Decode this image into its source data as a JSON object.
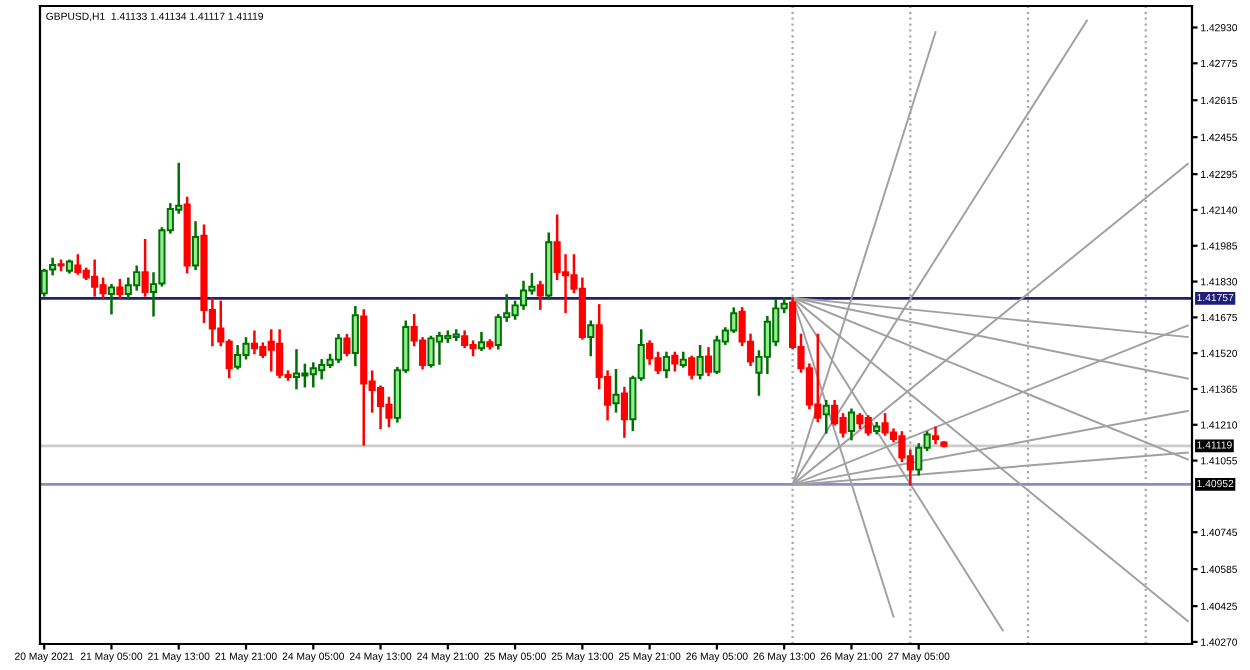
{
  "chart_data": {
    "type": "candlestick",
    "title": "GBPUSD,H1  1.41133 1.41134 1.41117 1.41119",
    "categories": [
      "20 May 2021",
      null,
      null,
      null,
      null,
      null,
      null,
      null,
      "21 May 05:00",
      null,
      null,
      null,
      null,
      null,
      null,
      null,
      "21 May 13:00",
      null,
      null,
      null,
      null,
      null,
      null,
      null,
      "21 May 21:00",
      null,
      null,
      null,
      null,
      null,
      null,
      null,
      "24 May 05:00",
      null,
      null,
      null,
      null,
      null,
      null,
      null,
      "24 May 13:00",
      null,
      null,
      null,
      null,
      null,
      null,
      null,
      "24 May 21:00",
      null,
      null,
      null,
      null,
      null,
      null,
      null,
      "25 May 05:00",
      null,
      null,
      null,
      null,
      null,
      null,
      null,
      "25 May 13:00",
      null,
      null,
      null,
      null,
      null,
      null,
      null,
      "25 May 21:00",
      null,
      null,
      null,
      null,
      null,
      null,
      null,
      "26 May 05:00",
      null,
      null,
      null,
      null,
      null,
      null,
      null,
      "26 May 13:00",
      null,
      null,
      null,
      null,
      null,
      null,
      null,
      "26 May 21:00",
      null,
      null,
      null,
      null,
      null,
      null,
      null,
      "27 May 05:00",
      null,
      null,
      null,
      null,
      null,
      null,
      null,
      null,
      null,
      null,
      null,
      null,
      null,
      null,
      null,
      null,
      null,
      null,
      null,
      null,
      null,
      null,
      null,
      null,
      null,
      null,
      null,
      null,
      null,
      null,
      null,
      null
    ],
    "ohlc": [
      [
        1.41779,
        1.4188,
        1.4177,
        1.41877
      ],
      [
        1.41882,
        1.41928,
        1.41862,
        1.41902
      ],
      [
        1.41905,
        1.4192,
        1.4188,
        1.419
      ],
      [
        1.41877,
        1.4192,
        1.4187,
        1.41917
      ],
      [
        1.419,
        1.41943,
        1.41865,
        1.41871
      ],
      [
        1.41877,
        1.41885,
        1.41842,
        1.41848
      ],
      [
        1.41851,
        1.4192,
        1.4177,
        1.41808
      ],
      [
        1.41814,
        1.41842,
        1.41762,
        1.41779
      ],
      [
        1.41776,
        1.41814,
        1.41693,
        1.41805
      ],
      [
        1.41805,
        1.41836,
        1.41762,
        1.41776
      ],
      [
        1.41776,
        1.41842,
        1.41756,
        1.41814
      ],
      [
        1.41814,
        1.41894,
        1.41796,
        1.41871
      ],
      [
        1.41871,
        1.42009,
        1.4177,
        1.41785
      ],
      [
        1.41785,
        1.41865,
        1.41684,
        1.41819
      ],
      [
        1.41822,
        1.4206,
        1.41814,
        1.42052
      ],
      [
        1.42052,
        1.42164,
        1.42043,
        1.42144
      ],
      [
        1.42141,
        1.42339,
        1.42129,
        1.42158
      ],
      [
        1.42164,
        1.42192,
        1.41871,
        1.419
      ],
      [
        1.419,
        1.42086,
        1.41885,
        1.42023
      ],
      [
        1.42029,
        1.42072,
        1.41656,
        1.41707
      ],
      [
        1.41707,
        1.41756,
        1.41555,
        1.41627
      ],
      [
        1.41627,
        1.41742,
        1.41555,
        1.4157
      ],
      [
        1.4157,
        1.41575,
        1.41417,
        1.41455
      ],
      [
        1.41461,
        1.4155,
        1.41455,
        1.41512
      ],
      [
        1.41512,
        1.41584,
        1.41498,
        1.41561
      ],
      [
        1.41561,
        1.41613,
        1.41521,
        1.41541
      ],
      [
        1.41547,
        1.41561,
        1.41504,
        1.41512
      ],
      [
        1.4157,
        1.41618,
        1.41446,
        1.41535
      ],
      [
        1.41561,
        1.41618,
        1.41417,
        1.41426
      ],
      [
        1.41426,
        1.4144,
        1.41406,
        1.41417
      ],
      [
        1.41417,
        1.41532,
        1.41369,
        1.41432
      ],
      [
        1.41423,
        1.41469,
        1.41377,
        1.41432
      ],
      [
        1.41429,
        1.41475,
        1.41377,
        1.41455
      ],
      [
        1.41446,
        1.41489,
        1.41412,
        1.41469
      ],
      [
        1.41469,
        1.41512,
        1.41461,
        1.41492
      ],
      [
        1.41492,
        1.41598,
        1.41483,
        1.41584
      ],
      [
        1.41584,
        1.41598,
        1.41512,
        1.41521
      ],
      [
        1.41521,
        1.41719,
        1.41469,
        1.41684
      ],
      [
        1.41679,
        1.41705,
        1.41125,
        1.41389
      ],
      [
        1.41397,
        1.4144,
        1.41268,
        1.4136
      ],
      [
        1.41369,
        1.41375,
        1.41196,
        1.41291
      ],
      [
        1.41297,
        1.41326,
        1.41205,
        1.4124
      ],
      [
        1.4124,
        1.41455,
        1.41225,
        1.41446
      ],
      [
        1.41446,
        1.41656,
        1.4144,
        1.41633
      ],
      [
        1.41633,
        1.41684,
        1.41555,
        1.41575
      ],
      [
        1.41575,
        1.41584,
        1.41455,
        1.41469
      ],
      [
        1.41469,
        1.4159,
        1.41463,
        1.41584
      ],
      [
        1.4157,
        1.41607,
        1.41475,
        1.41595
      ],
      [
        1.41584,
        1.41613,
        1.4157,
        1.41595
      ],
      [
        1.4159,
        1.41618,
        1.41578,
        1.41601
      ],
      [
        1.41593,
        1.41613,
        1.41547,
        1.41555
      ],
      [
        1.41555,
        1.4157,
        1.41512,
        1.41541
      ],
      [
        1.41541,
        1.41607,
        1.41535,
        1.41567
      ],
      [
        1.41567,
        1.41575,
        1.41541,
        1.4155
      ],
      [
        1.41555,
        1.41684,
        1.41541,
        1.41676
      ],
      [
        1.41676,
        1.4177,
        1.41661,
        1.41693
      ],
      [
        1.41684,
        1.41742,
        1.4167,
        1.41727
      ],
      [
        1.41727,
        1.41828,
        1.41713,
        1.41791
      ],
      [
        1.41791,
        1.41862,
        1.41779,
        1.41808
      ],
      [
        1.41814,
        1.41828,
        1.41713,
        1.4177
      ],
      [
        1.4177,
        1.42037,
        1.41756,
        1.42
      ],
      [
        1.42,
        1.42115,
        1.41842,
        1.41871
      ],
      [
        1.41871,
        1.41943,
        1.41699,
        1.41857
      ],
      [
        1.41857,
        1.41943,
        1.41785,
        1.41799
      ],
      [
        1.41799,
        1.41842,
        1.41584,
        1.4159
      ],
      [
        1.4159,
        1.41656,
        1.41512,
        1.41641
      ],
      [
        1.41641,
        1.41727,
        1.41369,
        1.41417
      ],
      [
        1.41417,
        1.4144,
        1.41234,
        1.41297
      ],
      [
        1.41303,
        1.41446,
        1.41268,
        1.4134
      ],
      [
        1.41346,
        1.41369,
        1.41159,
        1.41234
      ],
      [
        1.41234,
        1.41417,
        1.41188,
        1.41412
      ],
      [
        1.41412,
        1.41618,
        1.41406,
        1.41555
      ],
      [
        1.41561,
        1.4157,
        1.41475,
        1.41498
      ],
      [
        1.41498,
        1.41521,
        1.41435,
        1.41446
      ],
      [
        1.41446,
        1.41521,
        1.41417,
        1.41504
      ],
      [
        1.41509,
        1.41521,
        1.41446,
        1.41475
      ],
      [
        1.41469,
        1.41521,
        1.41463,
        1.41492
      ],
      [
        1.41498,
        1.41504,
        1.41412,
        1.41426
      ],
      [
        1.41426,
        1.4155,
        1.41412,
        1.41504
      ],
      [
        1.41506,
        1.41541,
        1.41426,
        1.4144
      ],
      [
        1.4144,
        1.4159,
        1.41435,
        1.41575
      ],
      [
        1.4157,
        1.41627,
        1.41561,
        1.41618
      ],
      [
        1.41618,
        1.41713,
        1.41613,
        1.41693
      ],
      [
        1.41699,
        1.41714,
        1.41556,
        1.4157
      ],
      [
        1.4157,
        1.41599,
        1.4147,
        1.41484
      ],
      [
        1.41435,
        1.41527,
        1.41341,
        1.41504
      ],
      [
        1.41504,
        1.41676,
        1.41435,
        1.41656
      ],
      [
        1.4157,
        1.41751,
        1.41556,
        1.41714
      ],
      [
        1.41714,
        1.41757,
        1.41699,
        1.41734
      ],
      [
        1.4174,
        1.41757,
        1.41542,
        1.41547
      ],
      [
        1.41547,
        1.41599,
        1.41441,
        1.41455
      ],
      [
        1.41455,
        1.4147,
        1.41283,
        1.41298
      ],
      [
        1.41298,
        1.41599,
        1.41226,
        1.4124
      ],
      [
        1.41255,
        1.41312,
        1.41177,
        1.41292
      ],
      [
        1.41292,
        1.41312,
        1.41212,
        1.41217
      ],
      [
        1.4124,
        1.41255,
        1.4116,
        1.41177
      ],
      [
        1.41183,
        1.41275,
        1.41148,
        1.41263
      ],
      [
        1.41249,
        1.41255,
        1.41197,
        1.41217
      ],
      [
        1.4124,
        1.41246,
        1.41168,
        1.41177
      ],
      [
        1.41183,
        1.41217,
        1.41174,
        1.41203
      ],
      [
        1.41217,
        1.41255,
        1.41168,
        1.41177
      ],
      [
        1.41177,
        1.41189,
        1.4114,
        1.41148
      ],
      [
        1.4116,
        1.41177,
        1.41054,
        1.41068
      ],
      [
        1.41074,
        1.41097,
        1.40952,
        1.41016
      ],
      [
        1.41016,
        1.41125,
        1.40996,
        1.41111
      ],
      [
        1.41111,
        1.41177,
        1.41102,
        1.41168
      ],
      [
        1.4116,
        1.41197,
        1.41131,
        1.41148
      ],
      [
        1.41133,
        1.41134,
        1.41117,
        1.41119
      ],
      null,
      null,
      null,
      null,
      null,
      null,
      null,
      null,
      null,
      null,
      null,
      null,
      null,
      null,
      null,
      null,
      null,
      null,
      null,
      null,
      null,
      null,
      null,
      null,
      null,
      null,
      null,
      null,
      null
    ],
    "series": [
      {
        "type": "line",
        "color": "#a0a0a0",
        "values": [
          null,
          null,
          null,
          null,
          null,
          null,
          null,
          null,
          null,
          null,
          null,
          null,
          null,
          null,
          null,
          null,
          null,
          null,
          null,
          null,
          null,
          null,
          null,
          null,
          null,
          null,
          null,
          null,
          null,
          null,
          null,
          null,
          null,
          null,
          null,
          null,
          null,
          null,
          null,
          null,
          null,
          null,
          null,
          null,
          null,
          null,
          null,
          null,
          null,
          null,
          null,
          null,
          null,
          null,
          null,
          null,
          null,
          null,
          null,
          null,
          null,
          null,
          null,
          null,
          null,
          null,
          null,
          null,
          null,
          null,
          null,
          null,
          null,
          null,
          null,
          null,
          null,
          null,
          null,
          null,
          null,
          null,
          null,
          null,
          null,
          null,
          null,
          null,
          null,
          1.4176,
          null,
          null,
          null,
          null,
          null,
          null,
          null,
          null,
          null,
          null,
          null,
          null,
          null,
          null,
          null,
          null,
          null,
          null,
          null,
          null,
          null,
          null,
          null,
          null,
          null,
          null,
          null,
          null,
          null,
          null,
          null,
          null,
          null,
          null,
          null,
          null,
          null,
          null,
          null,
          null,
          null,
          null,
          null,
          null,
          null,
          null,
          1.4159
        ]
      },
      {
        "type": "line",
        "color": "#a0a0a0",
        "values": [
          null,
          null,
          null,
          null,
          null,
          null,
          null,
          null,
          null,
          null,
          null,
          null,
          null,
          null,
          null,
          null,
          null,
          null,
          null,
          null,
          null,
          null,
          null,
          null,
          null,
          null,
          null,
          null,
          null,
          null,
          null,
          null,
          null,
          null,
          null,
          null,
          null,
          null,
          null,
          null,
          null,
          null,
          null,
          null,
          null,
          null,
          null,
          null,
          null,
          null,
          null,
          null,
          null,
          null,
          null,
          null,
          null,
          null,
          null,
          null,
          null,
          null,
          null,
          null,
          null,
          null,
          null,
          null,
          null,
          null,
          null,
          null,
          null,
          null,
          null,
          null,
          null,
          null,
          null,
          null,
          null,
          null,
          null,
          null,
          null,
          null,
          null,
          null,
          null,
          1.4176,
          null,
          null,
          null,
          null,
          null,
          null,
          null,
          null,
          null,
          null,
          null,
          null,
          null,
          null,
          null,
          null,
          null,
          null,
          null,
          null,
          null,
          null,
          null,
          null,
          null,
          null,
          null,
          null,
          null,
          null,
          null,
          null,
          null,
          null,
          null,
          null,
          null,
          null,
          null,
          null,
          null,
          null,
          null,
          null,
          null,
          null,
          1.4141
        ]
      },
      {
        "type": "line",
        "color": "#a0a0a0",
        "values": [
          null,
          null,
          null,
          null,
          null,
          null,
          null,
          null,
          null,
          null,
          null,
          null,
          null,
          null,
          null,
          null,
          null,
          null,
          null,
          null,
          null,
          null,
          null,
          null,
          null,
          null,
          null,
          null,
          null,
          null,
          null,
          null,
          null,
          null,
          null,
          null,
          null,
          null,
          null,
          null,
          null,
          null,
          null,
          null,
          null,
          null,
          null,
          null,
          null,
          null,
          null,
          null,
          null,
          null,
          null,
          null,
          null,
          null,
          null,
          null,
          null,
          null,
          null,
          null,
          null,
          null,
          null,
          null,
          null,
          null,
          null,
          null,
          null,
          null,
          null,
          null,
          null,
          null,
          null,
          null,
          null,
          null,
          null,
          null,
          null,
          null,
          null,
          null,
          null,
          1.4176,
          null,
          null,
          null,
          null,
          null,
          null,
          null,
          null,
          null,
          null,
          null,
          null,
          null,
          null,
          null,
          null,
          null,
          null,
          null,
          null,
          null,
          null,
          null,
          null,
          null,
          null,
          null,
          null,
          null,
          null,
          null,
          null,
          null,
          null,
          null,
          null,
          null,
          null,
          null,
          null,
          null,
          null,
          null,
          null,
          null,
          null,
          1.4106
        ]
      },
      {
        "type": "line",
        "color": "#a0a0a0",
        "values": [
          null,
          null,
          null,
          null,
          null,
          null,
          null,
          null,
          null,
          null,
          null,
          null,
          null,
          null,
          null,
          null,
          null,
          null,
          null,
          null,
          null,
          null,
          null,
          null,
          null,
          null,
          null,
          null,
          null,
          null,
          null,
          null,
          null,
          null,
          null,
          null,
          null,
          null,
          null,
          null,
          null,
          null,
          null,
          null,
          null,
          null,
          null,
          null,
          null,
          null,
          null,
          null,
          null,
          null,
          null,
          null,
          null,
          null,
          null,
          null,
          null,
          null,
          null,
          null,
          null,
          null,
          null,
          null,
          null,
          null,
          null,
          null,
          null,
          null,
          null,
          null,
          null,
          null,
          null,
          null,
          null,
          null,
          null,
          null,
          null,
          null,
          null,
          null,
          null,
          1.4176,
          null,
          null,
          null,
          null,
          null,
          null,
          null,
          null,
          null,
          null,
          null,
          null,
          null,
          null,
          null,
          null,
          null,
          null,
          null,
          null,
          null,
          null,
          null,
          null,
          null,
          null,
          null,
          null,
          null,
          null,
          null,
          null,
          null,
          null,
          null,
          null,
          null,
          null,
          null,
          null,
          null,
          null,
          null,
          null,
          null,
          null,
          1.4036
        ]
      },
      {
        "type": "line",
        "color": "#a0a0a0",
        "values": [
          null,
          null,
          null,
          null,
          null,
          null,
          null,
          null,
          null,
          null,
          null,
          null,
          null,
          null,
          null,
          null,
          null,
          null,
          null,
          null,
          null,
          null,
          null,
          null,
          null,
          null,
          null,
          null,
          null,
          null,
          null,
          null,
          null,
          null,
          null,
          null,
          null,
          null,
          null,
          null,
          null,
          null,
          null,
          null,
          null,
          null,
          null,
          null,
          null,
          null,
          null,
          null,
          null,
          null,
          null,
          null,
          null,
          null,
          null,
          null,
          null,
          null,
          null,
          null,
          null,
          null,
          null,
          null,
          null,
          null,
          null,
          null,
          null,
          null,
          null,
          null,
          null,
          null,
          null,
          null,
          null,
          null,
          null,
          null,
          null,
          null,
          null,
          null,
          null,
          1.4176,
          null,
          null,
          null,
          null,
          null,
          null,
          null,
          null,
          null,
          null,
          null,
          null,
          null,
          null,
          null,
          null,
          null,
          null,
          null,
          null,
          null,
          null,
          null,
          null,
          1.4032,
          null,
          null,
          null,
          null,
          null,
          null,
          null,
          null,
          null,
          null,
          null,
          null,
          null,
          null,
          null,
          null,
          null,
          null,
          null,
          null,
          null,
          null
        ]
      },
      {
        "type": "line",
        "color": "#a0a0a0",
        "values": [
          null,
          null,
          null,
          null,
          null,
          null,
          null,
          null,
          null,
          null,
          null,
          null,
          null,
          null,
          null,
          null,
          null,
          null,
          null,
          null,
          null,
          null,
          null,
          null,
          null,
          null,
          null,
          null,
          null,
          null,
          null,
          null,
          null,
          null,
          null,
          null,
          null,
          null,
          null,
          null,
          null,
          null,
          null,
          null,
          null,
          null,
          null,
          null,
          null,
          null,
          null,
          null,
          null,
          null,
          null,
          null,
          null,
          null,
          null,
          null,
          null,
          null,
          null,
          null,
          null,
          null,
          null,
          null,
          null,
          null,
          null,
          null,
          null,
          null,
          null,
          null,
          null,
          null,
          null,
          null,
          null,
          null,
          null,
          null,
          null,
          null,
          null,
          null,
          null,
          1.4176,
          null,
          null,
          null,
          null,
          null,
          null,
          null,
          null,
          null,
          null,
          null,
          1.4038,
          null,
          null,
          null,
          null,
          null,
          null,
          null,
          null,
          null,
          null,
          null,
          null,
          null,
          null,
          null,
          null,
          null,
          null,
          null,
          null,
          null,
          null,
          null,
          null,
          null,
          null,
          null,
          null,
          null,
          null,
          null,
          null,
          null,
          null,
          null
        ]
      },
      {
        "type": "line",
        "color": "#a0a0a0",
        "values": [
          null,
          null,
          null,
          null,
          null,
          null,
          null,
          null,
          null,
          null,
          null,
          null,
          null,
          null,
          null,
          null,
          null,
          null,
          null,
          null,
          null,
          null,
          null,
          null,
          null,
          null,
          null,
          null,
          null,
          null,
          null,
          null,
          null,
          null,
          null,
          null,
          null,
          null,
          null,
          null,
          null,
          null,
          null,
          null,
          null,
          null,
          null,
          null,
          null,
          null,
          null,
          null,
          null,
          null,
          null,
          null,
          null,
          null,
          null,
          null,
          null,
          null,
          null,
          null,
          null,
          null,
          null,
          null,
          null,
          null,
          null,
          null,
          null,
          null,
          null,
          null,
          null,
          null,
          null,
          null,
          null,
          null,
          null,
          null,
          null,
          null,
          null,
          null,
          null,
          1.4095,
          null,
          null,
          null,
          null,
          null,
          null,
          null,
          null,
          null,
          null,
          null,
          null,
          null,
          null,
          null,
          null,
          null,
          null,
          null,
          null,
          null,
          null,
          null,
          null,
          null,
          null,
          null,
          null,
          null,
          null,
          null,
          null,
          null,
          null,
          null,
          null,
          null,
          null,
          null,
          null,
          null,
          null,
          null,
          null,
          null,
          null,
          1.4109
        ]
      },
      {
        "type": "line",
        "color": "#a0a0a0",
        "values": [
          null,
          null,
          null,
          null,
          null,
          null,
          null,
          null,
          null,
          null,
          null,
          null,
          null,
          null,
          null,
          null,
          null,
          null,
          null,
          null,
          null,
          null,
          null,
          null,
          null,
          null,
          null,
          null,
          null,
          null,
          null,
          null,
          null,
          null,
          null,
          null,
          null,
          null,
          null,
          null,
          null,
          null,
          null,
          null,
          null,
          null,
          null,
          null,
          null,
          null,
          null,
          null,
          null,
          null,
          null,
          null,
          null,
          null,
          null,
          null,
          null,
          null,
          null,
          null,
          null,
          null,
          null,
          null,
          null,
          null,
          null,
          null,
          null,
          null,
          null,
          null,
          null,
          null,
          null,
          null,
          null,
          null,
          null,
          null,
          null,
          null,
          null,
          null,
          null,
          1.4095,
          null,
          null,
          null,
          null,
          null,
          null,
          null,
          null,
          null,
          null,
          null,
          null,
          null,
          null,
          null,
          null,
          null,
          null,
          null,
          null,
          null,
          null,
          null,
          null,
          null,
          null,
          null,
          null,
          null,
          null,
          null,
          null,
          null,
          null,
          null,
          null,
          null,
          null,
          null,
          null,
          null,
          null,
          null,
          null,
          null,
          null,
          1.4127
        ]
      },
      {
        "type": "line",
        "color": "#a0a0a0",
        "values": [
          null,
          null,
          null,
          null,
          null,
          null,
          null,
          null,
          null,
          null,
          null,
          null,
          null,
          null,
          null,
          null,
          null,
          null,
          null,
          null,
          null,
          null,
          null,
          null,
          null,
          null,
          null,
          null,
          null,
          null,
          null,
          null,
          null,
          null,
          null,
          null,
          null,
          null,
          null,
          null,
          null,
          null,
          null,
          null,
          null,
          null,
          null,
          null,
          null,
          null,
          null,
          null,
          null,
          null,
          null,
          null,
          null,
          null,
          null,
          null,
          null,
          null,
          null,
          null,
          null,
          null,
          null,
          null,
          null,
          null,
          null,
          null,
          null,
          null,
          null,
          null,
          null,
          null,
          null,
          null,
          null,
          null,
          null,
          null,
          null,
          null,
          null,
          null,
          null,
          1.4095,
          null,
          null,
          null,
          null,
          null,
          null,
          null,
          null,
          null,
          null,
          null,
          null,
          null,
          null,
          null,
          null,
          null,
          null,
          null,
          null,
          null,
          null,
          null,
          null,
          null,
          null,
          null,
          null,
          null,
          null,
          null,
          null,
          null,
          null,
          null,
          null,
          null,
          null,
          null,
          null,
          null,
          null,
          null,
          null,
          null,
          null,
          1.4164
        ]
      },
      {
        "type": "line",
        "color": "#a0a0a0",
        "values": [
          null,
          null,
          null,
          null,
          null,
          null,
          null,
          null,
          null,
          null,
          null,
          null,
          null,
          null,
          null,
          null,
          null,
          null,
          null,
          null,
          null,
          null,
          null,
          null,
          null,
          null,
          null,
          null,
          null,
          null,
          null,
          null,
          null,
          null,
          null,
          null,
          null,
          null,
          null,
          null,
          null,
          null,
          null,
          null,
          null,
          null,
          null,
          null,
          null,
          null,
          null,
          null,
          null,
          null,
          null,
          null,
          null,
          null,
          null,
          null,
          null,
          null,
          null,
          null,
          null,
          null,
          null,
          null,
          null,
          null,
          null,
          null,
          null,
          null,
          null,
          null,
          null,
          null,
          null,
          null,
          null,
          null,
          null,
          null,
          null,
          null,
          null,
          null,
          null,
          1.4095,
          null,
          null,
          null,
          null,
          null,
          null,
          null,
          null,
          null,
          null,
          null,
          null,
          null,
          null,
          null,
          null,
          null,
          null,
          null,
          null,
          null,
          null,
          null,
          null,
          null,
          null,
          null,
          null,
          null,
          null,
          null,
          null,
          null,
          null,
          null,
          null,
          null,
          null,
          null,
          null,
          null,
          null,
          null,
          null,
          null,
          null,
          1.4234
        ]
      },
      {
        "type": "line",
        "color": "#a0a0a0",
        "values": [
          null,
          null,
          null,
          null,
          null,
          null,
          null,
          null,
          null,
          null,
          null,
          null,
          null,
          null,
          null,
          null,
          null,
          null,
          null,
          null,
          null,
          null,
          null,
          null,
          null,
          null,
          null,
          null,
          null,
          null,
          null,
          null,
          null,
          null,
          null,
          null,
          null,
          null,
          null,
          null,
          null,
          null,
          null,
          null,
          null,
          null,
          null,
          null,
          null,
          null,
          null,
          null,
          null,
          null,
          null,
          null,
          null,
          null,
          null,
          null,
          null,
          null,
          null,
          null,
          null,
          null,
          null,
          null,
          null,
          null,
          null,
          null,
          null,
          null,
          null,
          null,
          null,
          null,
          null,
          null,
          null,
          null,
          null,
          null,
          null,
          null,
          null,
          null,
          null,
          1.4095,
          null,
          null,
          null,
          null,
          null,
          null,
          null,
          null,
          null,
          null,
          null,
          null,
          null,
          null,
          null,
          null,
          null,
          null,
          null,
          null,
          null,
          null,
          null,
          null,
          null,
          null,
          null,
          null,
          null,
          null,
          null,
          null,
          null,
          null,
          1.4296,
          null,
          null,
          null,
          null,
          null,
          null,
          null,
          null,
          null,
          null,
          null,
          null
        ]
      },
      {
        "type": "line",
        "color": "#a0a0a0",
        "values": [
          null,
          null,
          null,
          null,
          null,
          null,
          null,
          null,
          null,
          null,
          null,
          null,
          null,
          null,
          null,
          null,
          null,
          null,
          null,
          null,
          null,
          null,
          null,
          null,
          null,
          null,
          null,
          null,
          null,
          null,
          null,
          null,
          null,
          null,
          null,
          null,
          null,
          null,
          null,
          null,
          null,
          null,
          null,
          null,
          null,
          null,
          null,
          null,
          null,
          null,
          null,
          null,
          null,
          null,
          null,
          null,
          null,
          null,
          null,
          null,
          null,
          null,
          null,
          null,
          null,
          null,
          null,
          null,
          null,
          null,
          null,
          null,
          null,
          null,
          null,
          null,
          null,
          null,
          null,
          null,
          null,
          null,
          null,
          null,
          null,
          null,
          null,
          null,
          null,
          1.4095,
          null,
          null,
          null,
          null,
          null,
          null,
          null,
          null,
          null,
          null,
          null,
          null,
          null,
          null,
          null,
          null,
          1.4291,
          null,
          null,
          null,
          null,
          null,
          null,
          null,
          null,
          null,
          null,
          null,
          null,
          null,
          null,
          null,
          null,
          null,
          null,
          null,
          null,
          null,
          null,
          null,
          null,
          null,
          null,
          null,
          null,
          null,
          null
        ]
      }
    ],
    "ylim": [
      1.40261,
      1.43023
    ],
    "yticks": [
      {
        "value": 1.4293,
        "label": "1.42930"
      },
      1.42775,
      1.42615,
      1.42455,
      1.42295,
      {
        "value": 1.4214,
        "label": "1.42140"
      },
      1.41985,
      {
        "value": 1.4183,
        "label": "1.41830"
      },
      1.41675,
      {
        "value": 1.4152,
        "label": "1.41520"
      },
      1.41365,
      {
        "value": 1.4121,
        "label": "1.41210"
      },
      1.41055,
      1.40745,
      1.40585,
      1.40425,
      {
        "value": 1.4027,
        "label": "1.40270"
      }
    ],
    "ref_lines": [
      {
        "axis": "y",
        "value": 1.41757,
        "label": "1.41757",
        "color": "#1f1f7a"
      },
      {
        "axis": "y",
        "value": 1.41119,
        "label": "1.41119",
        "color": "#cccccc"
      },
      {
        "axis": "y",
        "value": 1.40952,
        "label": "1.40952",
        "color": "#8c8cc0"
      }
    ],
    "grid": false,
    "legend": false
  }
}
